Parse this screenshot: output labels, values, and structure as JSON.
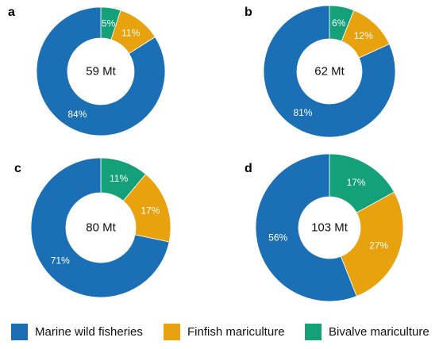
{
  "colors": {
    "marine_wild_fisheries": "#1b6fb4",
    "finfish_mariculture": "#e8a20d",
    "bivalve_mariculture": "#14a079"
  },
  "legend": [
    {
      "label": "Marine wild fisheries",
      "color": "#1b6fb4"
    },
    {
      "label": "Finfish mariculture",
      "color": "#e8a20d"
    },
    {
      "label": "Bivalve mariculture",
      "color": "#14a079"
    }
  ],
  "chart_data": [
    {
      "type": "pie",
      "panel": "a",
      "center_label": "59 Mt",
      "slices": [
        {
          "series": "Bivalve mariculture",
          "value": 5,
          "label": "5%"
        },
        {
          "series": "Finfish mariculture",
          "value": 11,
          "label": "11%"
        },
        {
          "series": "Marine wild fisheries",
          "value": 84,
          "label": "84%"
        }
      ]
    },
    {
      "type": "pie",
      "panel": "b",
      "center_label": "62 Mt",
      "slices": [
        {
          "series": "Bivalve mariculture",
          "value": 6,
          "label": "6%"
        },
        {
          "series": "Finfish mariculture",
          "value": 12,
          "label": "12%"
        },
        {
          "series": "Marine wild fisheries",
          "value": 81,
          "label": "81%"
        }
      ]
    },
    {
      "type": "pie",
      "panel": "c",
      "center_label": "80 Mt",
      "slices": [
        {
          "series": "Bivalve mariculture",
          "value": 11,
          "label": "11%"
        },
        {
          "series": "Finfish mariculture",
          "value": 17,
          "label": "17%"
        },
        {
          "series": "Marine wild fisheries",
          "value": 71,
          "label": "71%"
        }
      ]
    },
    {
      "type": "pie",
      "panel": "d",
      "center_label": "103 Mt",
      "slices": [
        {
          "series": "Bivalve mariculture",
          "value": 17,
          "label": "17%"
        },
        {
          "series": "Finfish mariculture",
          "value": 27,
          "label": "27%"
        },
        {
          "series": "Marine wild fisheries",
          "value": 56,
          "label": "56%"
        }
      ]
    }
  ]
}
